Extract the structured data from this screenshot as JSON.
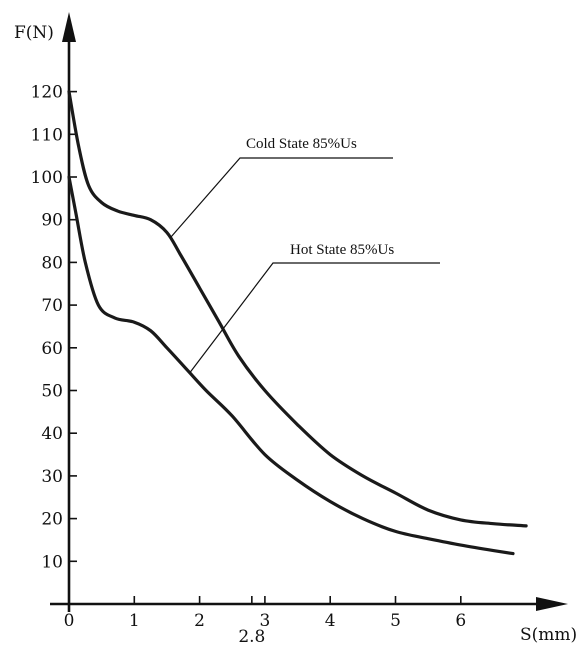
{
  "chart_data": {
    "type": "line",
    "xlabel": "S(mm)",
    "ylabel": "F(N)",
    "xlim": [
      0,
      7.2
    ],
    "ylim": [
      0,
      125
    ],
    "grid": false,
    "x_ticks": [
      0,
      1,
      2,
      3,
      4,
      5,
      6
    ],
    "x_tick_labels": [
      "0",
      "1",
      "2",
      "3",
      "4",
      "5",
      "6"
    ],
    "extra_x_tick": {
      "value": 2.8,
      "label": "2.8"
    },
    "y_ticks": [
      10,
      20,
      30,
      40,
      50,
      60,
      70,
      80,
      90,
      100,
      110,
      120
    ],
    "y_tick_labels": [
      "10",
      "20",
      "30",
      "40",
      "50",
      "60",
      "70",
      "80",
      "90",
      "100",
      "110",
      "120"
    ],
    "series": [
      {
        "name": "Cold State 85%Us",
        "x": [
          0,
          0.15,
          0.3,
          0.5,
          0.75,
          1.0,
          1.25,
          1.5,
          1.7,
          2.0,
          2.3,
          2.6,
          3.0,
          3.5,
          4.0,
          4.5,
          5.0,
          5.5,
          6.0,
          6.5,
          7.0
        ],
        "y": [
          120,
          107,
          98,
          94,
          92,
          91,
          90,
          87,
          82,
          74,
          66,
          58,
          50,
          42,
          35,
          30,
          26,
          22,
          19.7,
          18.8,
          18.3
        ]
      },
      {
        "name": "Hot State 85%Us",
        "x": [
          0,
          0.1,
          0.25,
          0.45,
          0.7,
          1.0,
          1.25,
          1.5,
          1.8,
          2.1,
          2.5,
          3.0,
          3.5,
          4.0,
          4.5,
          5.0,
          5.5,
          6.0,
          6.5,
          6.8
        ],
        "y": [
          100,
          92,
          80,
          70,
          67,
          66,
          64,
          60,
          55,
          50,
          44,
          35,
          29,
          24,
          20,
          17,
          15.3,
          13.8,
          12.5,
          11.8
        ]
      }
    ],
    "annotations": [
      {
        "text": "Cold State 85%Us",
        "series": 0,
        "at_x": 1.55
      },
      {
        "text": "Hot State 85%Us",
        "series": 1,
        "at_x": 1.85
      }
    ]
  }
}
